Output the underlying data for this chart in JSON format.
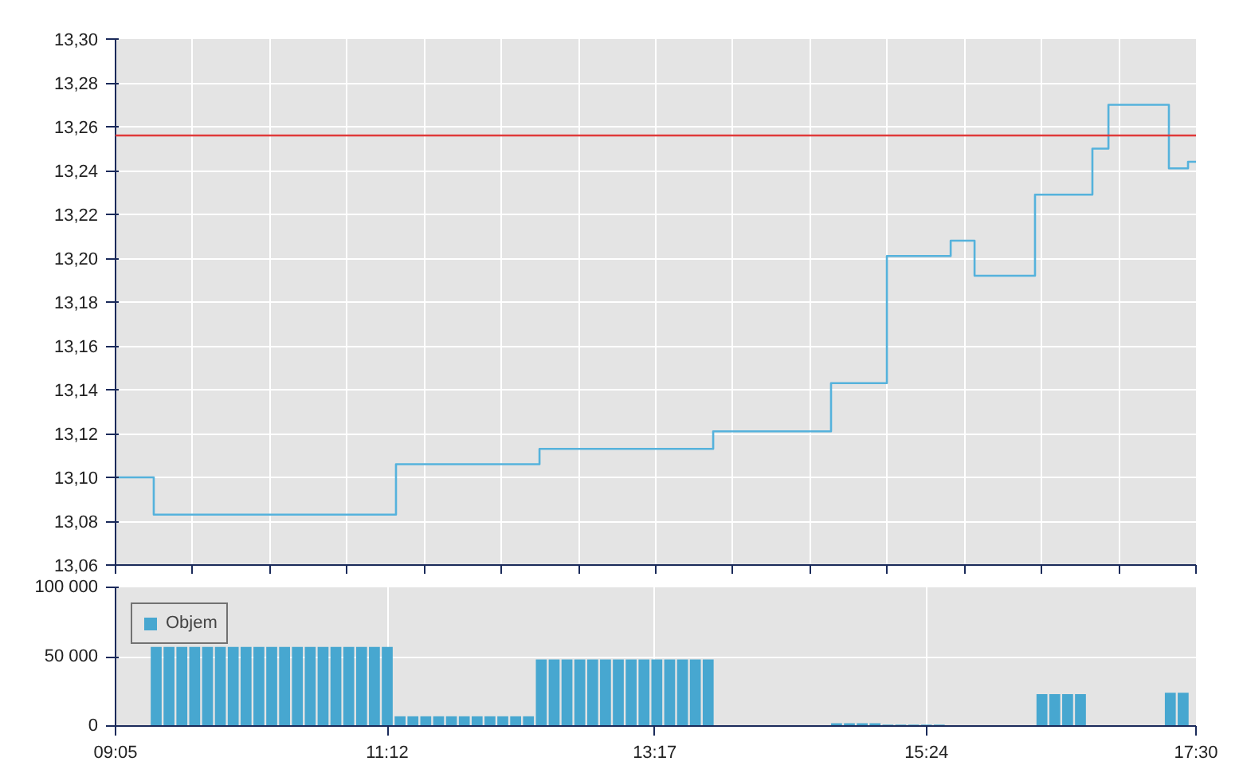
{
  "chart_data": [
    {
      "type": "step",
      "xlim": [
        9.0833,
        17.5
      ],
      "ylim": [
        13.06,
        13.3
      ],
      "xticks": [
        {
          "value": 9.0833,
          "label": null
        },
        {
          "value": 9.6845,
          "label": null
        },
        {
          "value": 10.2857,
          "label": null
        },
        {
          "value": 10.8869,
          "label": null
        },
        {
          "value": 11.4881,
          "label": null
        },
        {
          "value": 12.0893,
          "label": null
        },
        {
          "value": 12.6905,
          "label": null
        },
        {
          "value": 13.2917,
          "label": null
        },
        {
          "value": 13.8929,
          "label": null
        },
        {
          "value": 14.494,
          "label": null
        },
        {
          "value": 15.0952,
          "label": null
        },
        {
          "value": 15.6964,
          "label": null
        },
        {
          "value": 16.2976,
          "label": null
        },
        {
          "value": 16.8988,
          "label": null
        },
        {
          "value": 17.5,
          "label": null
        }
      ],
      "yticks": [
        {
          "value": 13.06,
          "label": "13,06"
        },
        {
          "value": 13.08,
          "label": "13,08"
        },
        {
          "value": 13.1,
          "label": "13,10"
        },
        {
          "value": 13.12,
          "label": "13,12"
        },
        {
          "value": 13.14,
          "label": "13,14"
        },
        {
          "value": 13.16,
          "label": "13,16"
        },
        {
          "value": 13.18,
          "label": "13,18"
        },
        {
          "value": 13.2,
          "label": "13,20"
        },
        {
          "value": 13.22,
          "label": "13,22"
        },
        {
          "value": 13.24,
          "label": "13,24"
        },
        {
          "value": 13.26,
          "label": "13,26"
        },
        {
          "value": 13.28,
          "label": "13,28"
        },
        {
          "value": 13.3,
          "label": "13,30"
        }
      ],
      "tick_labels": "y",
      "grid": true,
      "legend": false,
      "series": [
        {
          "color": "#55b2dc",
          "x": [
            9.0833,
            9.381,
            11.268,
            12.386,
            13.739,
            14.657,
            15.092,
            15.589,
            15.775,
            16.246,
            16.693,
            16.818,
            17.289,
            17.438,
            17.5
          ],
          "values": [
            13.1,
            13.083,
            13.106,
            13.113,
            13.121,
            13.143,
            13.201,
            13.208,
            13.192,
            13.229,
            13.25,
            13.27,
            13.241,
            13.244,
            13.244
          ]
        }
      ],
      "ref_lines": [
        {
          "axis": "y",
          "value": 13.256,
          "color": "#e03a3a"
        }
      ]
    },
    {
      "type": "bar",
      "xlim": [
        9.0833,
        17.5
      ],
      "ylim": [
        0,
        100000
      ],
      "xticks": [
        {
          "value": 9.0833,
          "label": "09:05"
        },
        {
          "value": 11.2,
          "label": "11:12"
        },
        {
          "value": 13.2833,
          "label": "13:17"
        },
        {
          "value": 15.4,
          "label": "15:24"
        },
        {
          "value": 17.5,
          "label": "17:30"
        }
      ],
      "yticks": [
        {
          "value": 0,
          "label": "0"
        },
        {
          "value": 50000,
          "label": "50 000"
        },
        {
          "value": 100000,
          "label": "100 000"
        }
      ],
      "grid": true,
      "legend": "top left",
      "series": [
        {
          "name": "Objem",
          "color": "#47a7d0",
          "x": [
            9.4,
            9.5,
            9.6,
            9.7,
            9.8,
            9.9,
            10.0,
            10.1,
            10.2,
            10.3,
            10.4,
            10.5,
            10.6,
            10.7,
            10.8,
            10.9,
            11.0,
            11.1,
            11.2,
            11.3,
            11.4,
            11.5,
            11.6,
            11.7,
            11.8,
            11.9,
            12.0,
            12.1,
            12.2,
            12.3,
            12.4,
            12.5,
            12.6,
            12.7,
            12.8,
            12.9,
            13.0,
            13.1,
            13.2,
            13.3,
            13.4,
            13.5,
            13.6,
            13.7,
            14.7,
            14.8,
            14.9,
            15.0,
            15.1,
            15.2,
            15.3,
            15.4,
            15.5,
            16.3,
            16.4,
            16.5,
            16.6,
            17.3,
            17.4
          ],
          "values": [
            57000,
            57000,
            57000,
            57000,
            57000,
            57000,
            57000,
            57000,
            57000,
            57000,
            57000,
            57000,
            57000,
            57000,
            57000,
            57000,
            57000,
            57000,
            57000,
            7000,
            7000,
            7000,
            7000,
            7000,
            7000,
            7000,
            7000,
            7000,
            7000,
            7000,
            48000,
            48000,
            48000,
            48000,
            48000,
            48000,
            48000,
            48000,
            48000,
            48000,
            48000,
            48000,
            48000,
            48000,
            2000,
            2000,
            2000,
            2000,
            1000,
            1000,
            1000,
            1000,
            1000,
            23000,
            23000,
            23000,
            23000,
            24000,
            24000
          ]
        }
      ]
    }
  ]
}
